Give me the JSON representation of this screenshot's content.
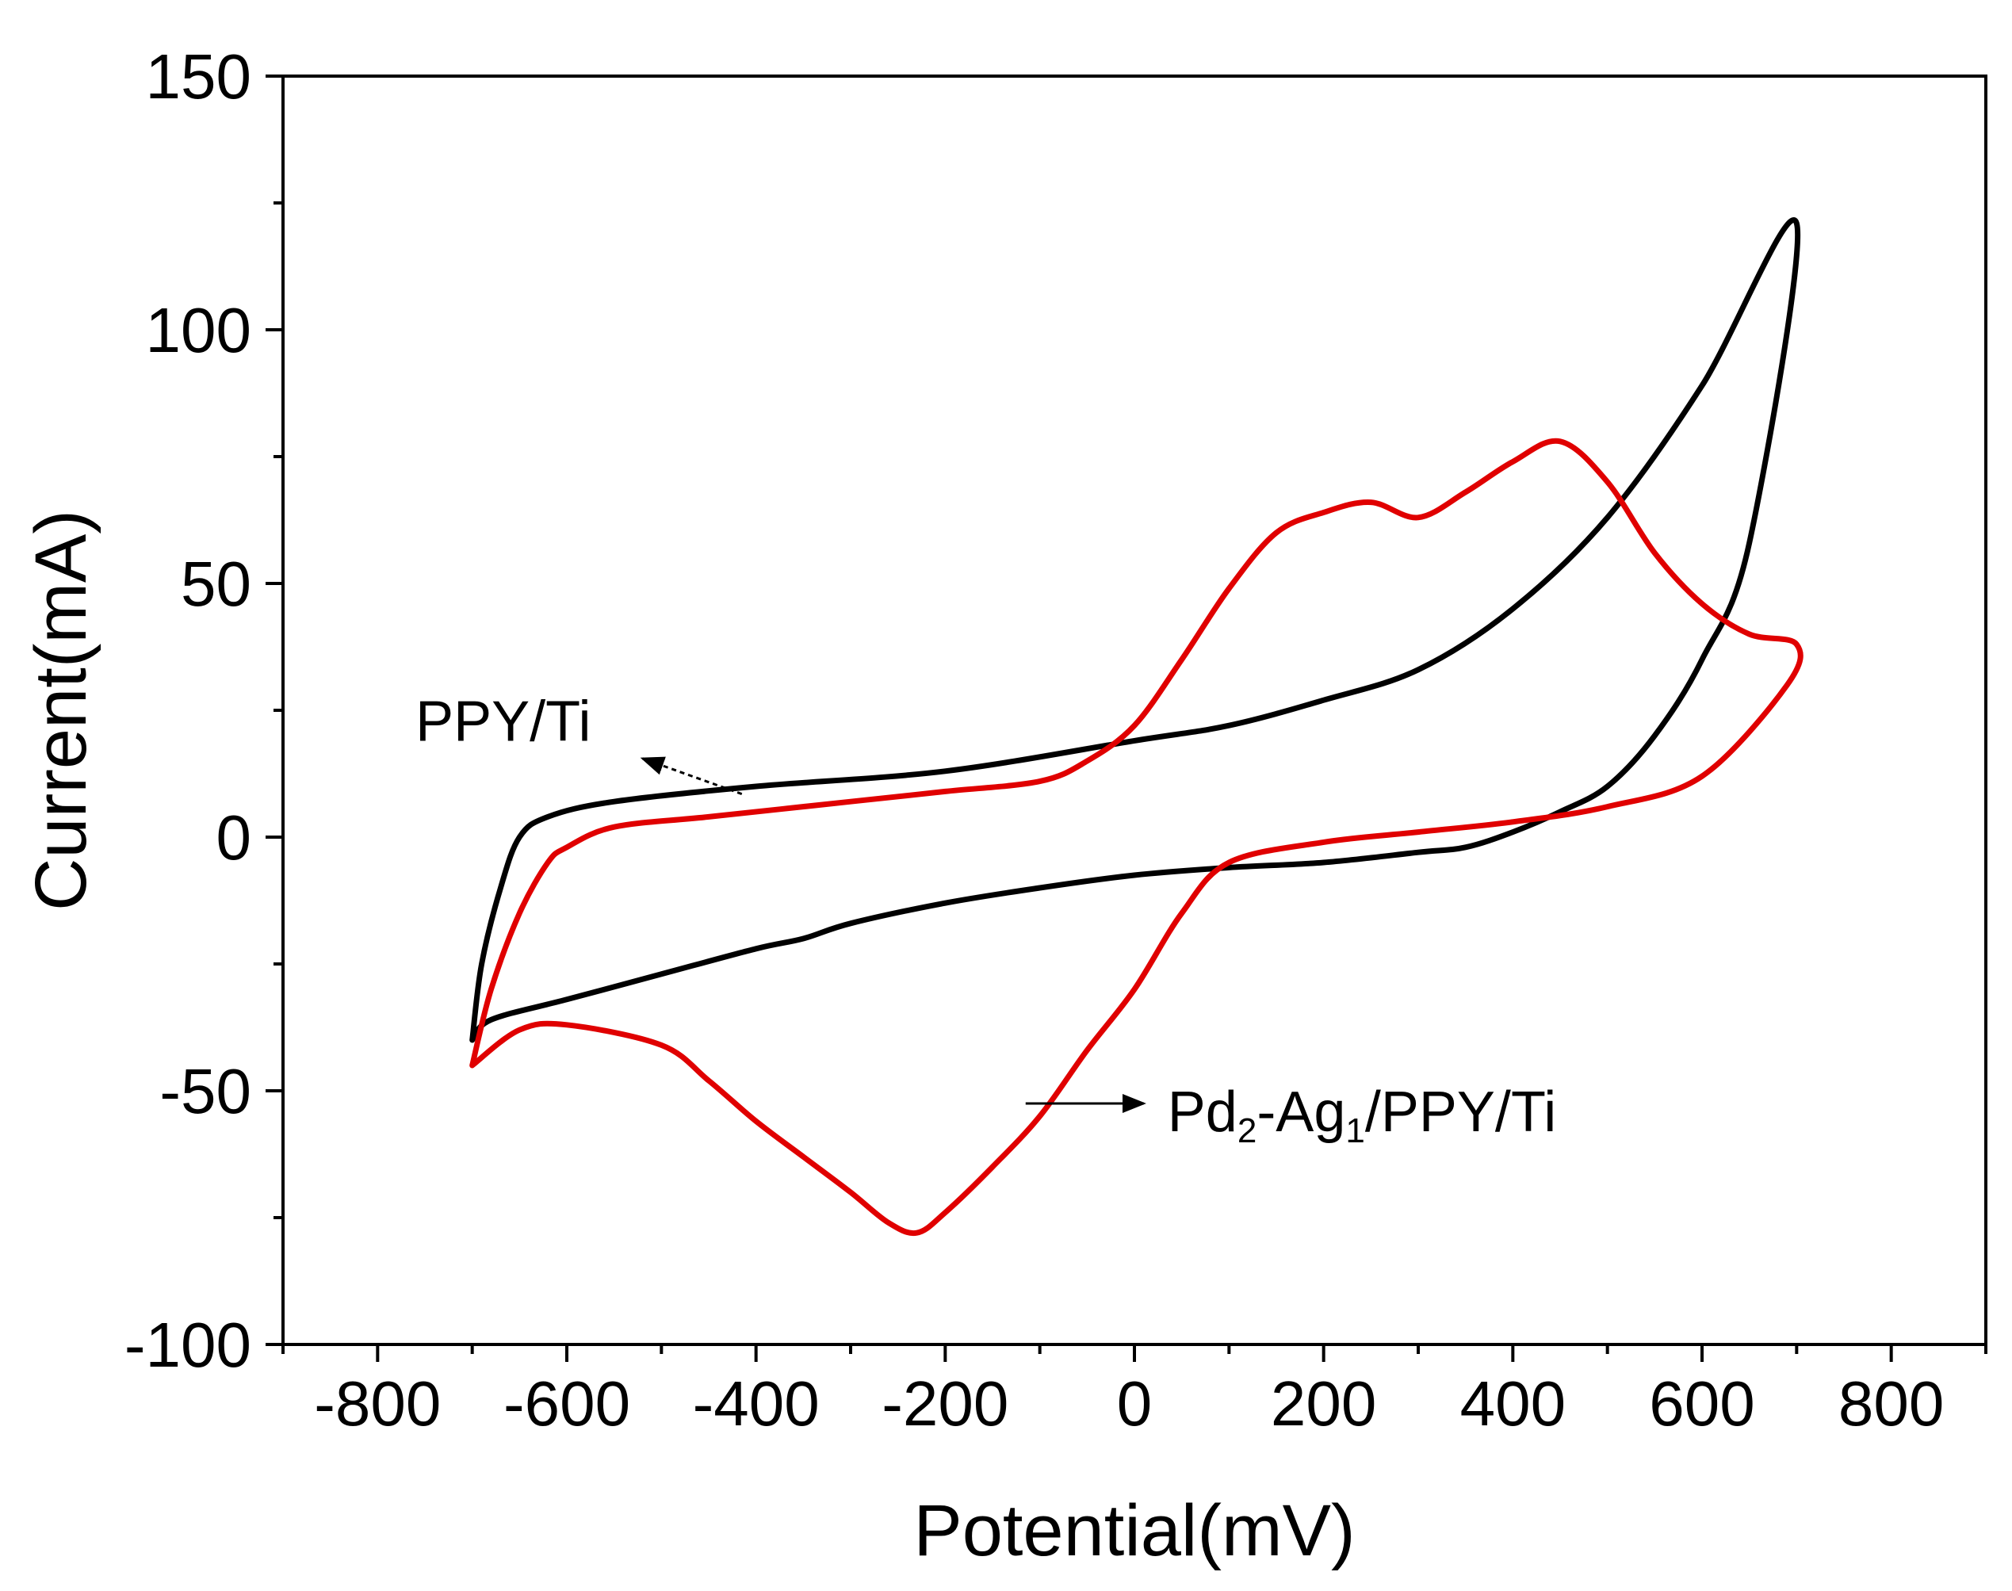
{
  "chart_data": {
    "type": "line",
    "title": "",
    "xlabel": "Potential(mV)",
    "ylabel": "Current(mA)",
    "xlim": [
      -900,
      900
    ],
    "ylim": [
      -100,
      150
    ],
    "xticks": [
      -800,
      -600,
      -400,
      -200,
      0,
      200,
      400,
      600,
      800
    ],
    "yticks": [
      -100,
      -50,
      0,
      50,
      100,
      150
    ],
    "xtick_labels": [
      "-800",
      "-600",
      "-400",
      "-200",
      "0",
      "200",
      "400",
      "600",
      "800"
    ],
    "ytick_labels": [
      "-100",
      "-50",
      "0",
      "50",
      "100",
      "150"
    ],
    "grid": false,
    "series": [
      {
        "name": "PPY/Ti",
        "color": "#000000",
        "x": [
          -700,
          -690,
          -670,
          -650,
          -620,
          -550,
          -400,
          -200,
          0,
          100,
          200,
          300,
          400,
          500,
          600,
          700,
          650,
          600,
          550,
          500,
          450,
          400,
          350,
          300,
          200,
          100,
          0,
          -100,
          -200,
          -300,
          -350,
          -400,
          -500,
          -600,
          -680,
          -700
        ],
        "y": [
          -40,
          -25,
          -10,
          0,
          4,
          7,
          10,
          13,
          19,
          22,
          27,
          33,
          45,
          63,
          89,
          121,
          58,
          35,
          20,
          10,
          5,
          1,
          -2,
          -3,
          -5,
          -6,
          -7.5,
          -10,
          -13,
          -17,
          -20,
          -22,
          -27,
          -32,
          -36,
          -40
        ]
      },
      {
        "name": "Pd2-Ag1/PPY/Ti",
        "color": "#e00000",
        "x": [
          -700,
          -680,
          -650,
          -620,
          -600,
          -550,
          -450,
          -300,
          -200,
          -100,
          -50,
          0,
          50,
          100,
          150,
          200,
          250,
          300,
          350,
          400,
          450,
          500,
          550,
          600,
          650,
          700,
          690,
          600,
          500,
          400,
          300,
          200,
          100,
          50,
          0,
          -50,
          -100,
          -150,
          -200,
          -230,
          -260,
          -300,
          -350,
          -400,
          -450,
          -500,
          -600,
          -650,
          -700
        ],
        "y": [
          -45,
          -30,
          -15,
          -5,
          -2,
          2,
          4,
          7,
          9,
          11,
          15,
          22,
          35,
          49,
          60,
          64,
          66,
          63,
          68,
          74,
          78,
          70,
          56,
          46,
          40,
          38,
          30,
          12,
          6,
          3,
          1,
          -1,
          -5,
          -15,
          -30,
          -42,
          -55,
          -65,
          -74,
          -78,
          -76,
          -70,
          -63,
          -56,
          -48,
          -41,
          -37,
          -38,
          -45
        ]
      }
    ],
    "annotations": [
      {
        "target": "PPY/Ti",
        "text": "PPY/Ti"
      },
      {
        "target": "Pd2-Ag1/PPY/Ti",
        "text_parts": [
          "Pd",
          "2",
          "-Ag",
          "1",
          "/PPY/Ti"
        ]
      }
    ]
  }
}
